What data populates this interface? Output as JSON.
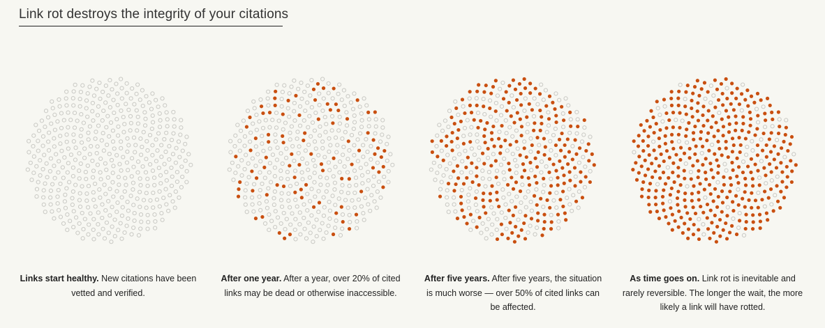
{
  "title": "Link rot destroys the integrity of your citations",
  "colors": {
    "background": "#f7f7f2",
    "healthy_stroke": "#c9c9c4",
    "rotted_fill": "#c94f10"
  },
  "panels": [
    {
      "lead": "Links start healthy.",
      "text": "New citations have been vetted and verified.",
      "rotted_fraction": 0.0
    },
    {
      "lead": "After one year.",
      "text": "After a year, over 20% of cited links may be dead or otherwise inaccessible.",
      "rotted_fraction": 0.2
    },
    {
      "lead": "After five years.",
      "text": "After five years, the situation is much worse — over 50% of cited links can be affected.",
      "rotted_fraction": 0.55
    },
    {
      "lead": "As time goes on.",
      "text": "Link rot is inevitable and rarely reversible. The longer the wait, the more likely a link will have rotted.",
      "rotted_fraction": 0.85
    }
  ]
}
